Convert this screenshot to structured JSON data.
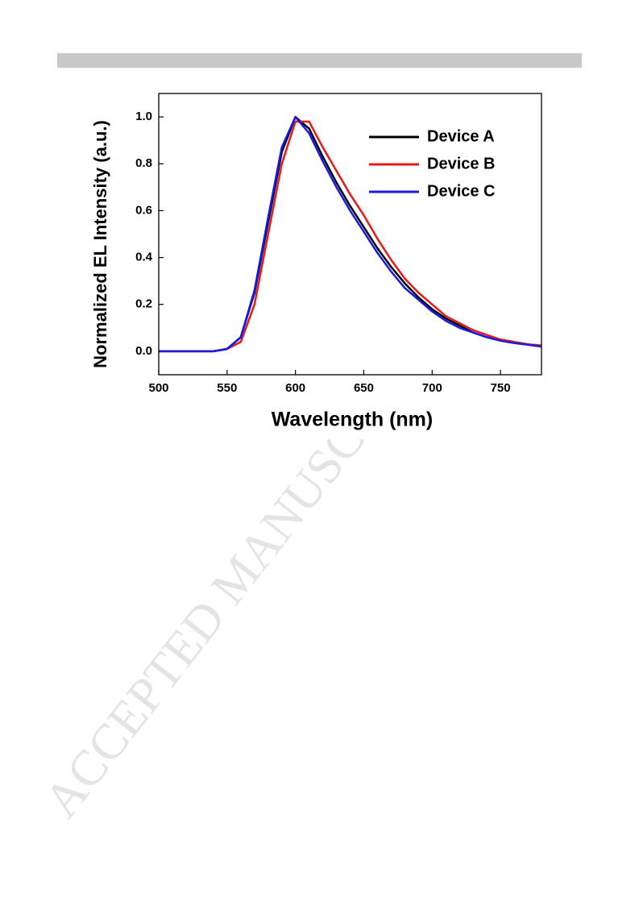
{
  "watermark": "ACCEPTED MANUSCRIPT",
  "chart_data": {
    "type": "line",
    "xlabel": "Wavelength (nm)",
    "ylabel": "Normalized EL Intensity (a.u.)",
    "x": [
      500,
      510,
      520,
      530,
      540,
      550,
      560,
      570,
      580,
      590,
      600,
      610,
      620,
      630,
      640,
      650,
      660,
      670,
      680,
      690,
      700,
      710,
      720,
      730,
      740,
      750,
      760,
      770,
      780
    ],
    "series": [
      {
        "name": "Device A",
        "color": "#000000",
        "values": [
          0,
          0,
          0,
          0,
          0,
          0.01,
          0.06,
          0.25,
          0.55,
          0.85,
          1.0,
          0.95,
          0.83,
          0.72,
          0.62,
          0.53,
          0.44,
          0.36,
          0.29,
          0.23,
          0.18,
          0.14,
          0.11,
          0.08,
          0.06,
          0.05,
          0.04,
          0.03,
          0.02
        ]
      },
      {
        "name": "Device B",
        "color": "#e8191b",
        "values": [
          0,
          0,
          0,
          0,
          0,
          0.01,
          0.04,
          0.2,
          0.5,
          0.8,
          0.98,
          0.98,
          0.87,
          0.77,
          0.67,
          0.58,
          0.48,
          0.39,
          0.31,
          0.25,
          0.2,
          0.15,
          0.12,
          0.09,
          0.07,
          0.05,
          0.04,
          0.03,
          0.025
        ]
      },
      {
        "name": "Device C",
        "color": "#1a1ae0",
        "values": [
          0,
          0,
          0,
          0,
          0,
          0.01,
          0.06,
          0.26,
          0.57,
          0.87,
          1.0,
          0.93,
          0.81,
          0.7,
          0.6,
          0.51,
          0.42,
          0.34,
          0.27,
          0.22,
          0.17,
          0.13,
          0.1,
          0.08,
          0.06,
          0.045,
          0.035,
          0.028,
          0.02
        ]
      }
    ],
    "xlim": [
      500,
      780
    ],
    "ylim": [
      -0.1,
      1.1
    ],
    "xticks": [
      500,
      550,
      600,
      650,
      700,
      750
    ],
    "yticks": [
      {
        "value": 0,
        "label": "0.0"
      },
      0.2,
      0.4,
      0.6,
      0.8,
      {
        "value": 1,
        "label": "1.0"
      }
    ],
    "legend": "upper right"
  }
}
